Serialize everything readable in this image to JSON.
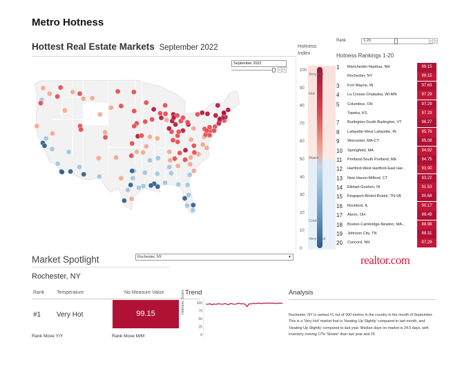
{
  "header": {
    "page_title": "Metro Hotness",
    "main_title": "Hottest Real Estate Markets",
    "main_subtitle": "September 2022",
    "month_value": "September 2022"
  },
  "scale": {
    "title": "Hotness Index",
    "ticks": [
      "100",
      "90",
      "80",
      "70",
      "60",
      "50",
      "40",
      "30",
      "20",
      "10",
      "0"
    ],
    "words": [
      "Very Hot",
      "Hot",
      "Warm",
      "Cool",
      "Very Cool"
    ]
  },
  "rankings": {
    "filter_label": "Rank",
    "filter_value": "1-20",
    "title": "Hotness Rankings 1-20",
    "rows": [
      {
        "rank": "1",
        "name": "Manchester-Nashua, NH",
        "value": "99.15"
      },
      {
        "rank": "",
        "name": "Rochester, NY",
        "value": "99.15"
      },
      {
        "rank": "3",
        "name": "Fort Wayne, IN",
        "value": "97.63"
      },
      {
        "rank": "4",
        "name": "La Crosse-Onalaska, WI-MN",
        "value": "97.29"
      },
      {
        "rank": "5",
        "name": "Columbus, OH",
        "value": "97.29"
      },
      {
        "rank": "",
        "name": "Topeka, KS",
        "value": "97.29"
      },
      {
        "rank": "7",
        "name": "Burlington-South Burlington, VT",
        "value": "96.27"
      },
      {
        "rank": "8",
        "name": "Lafayette-West Lafayette, IN",
        "value": "95.76"
      },
      {
        "rank": "9",
        "name": "Worcester, MA-CT",
        "value": "95.08"
      },
      {
        "rank": "10",
        "name": "Springfield, MA",
        "value": "94.92"
      },
      {
        "rank": "11",
        "name": "Portland-South Portland, ME",
        "value": "94.75"
      },
      {
        "rank": "12",
        "name": "Hartford-West Hartford-East Har..",
        "value": "93.90"
      },
      {
        "rank": "13",
        "name": "New Haven-Milford, CT",
        "value": "93.22"
      },
      {
        "rank": "14",
        "name": "Elkhart-Goshen, IN",
        "value": "91.53"
      },
      {
        "rank": "15",
        "name": "Kingsport-Bristol-Bristol, TN-VA",
        "value": "90.68"
      },
      {
        "rank": "16",
        "name": "Rockford, IL",
        "value": "90.17"
      },
      {
        "rank": "17",
        "name": "Akron, OH",
        "value": "89.49"
      },
      {
        "rank": "18",
        "name": "Boston-Cambridge-Newton, MA-..",
        "value": "88.98"
      },
      {
        "rank": "19",
        "name": "Johnson City, TN",
        "value": "88.31"
      },
      {
        "rank": "20",
        "name": "Concord, NH",
        "value": "87.29"
      }
    ]
  },
  "spotlight": {
    "title": "Market Spotlight",
    "selected": "Rochester, NY",
    "city": "Rochester, NY",
    "rank_header": "Rank",
    "temp_header": "Temperature",
    "measure_header": "No Measure Value",
    "rank_value": "#1",
    "temp_value": "Very Hot",
    "measure_value": "99.15",
    "rank_move_yy": "Rank Move Y/Y",
    "rank_move_mm": "Rank Move M/M"
  },
  "logo": {
    "text": "realtor.com"
  },
  "trend": {
    "title": "Trend",
    "ylabel": "Hotness Score",
    "ticks": [
      "100",
      "75",
      "50",
      "25",
      "0"
    ],
    "line_color": "#b01236",
    "points": [
      96,
      95,
      97,
      94,
      96,
      95,
      97,
      96,
      95,
      97,
      96,
      94,
      98,
      96,
      95,
      97,
      99,
      96,
      97,
      95,
      88,
      97,
      96,
      98,
      97,
      99,
      98,
      97,
      99,
      98,
      99,
      99,
      98,
      99,
      97,
      99,
      98,
      99
    ]
  },
  "analysis": {
    "title": "Analysis",
    "text": "Rochester, NY is ranked #1 out of 300 metros in the country in the month of September. This is a 'Very Hot' market that is 'Heating Up Slightly' compared to last month, and 'Heating Up Slightly' compared to last year. Median days on market is 24.5 days, with inventory moving 17% 'Slower' than last year and 25"
  },
  "colors": {
    "very_hot": "#b01236",
    "hot": "#e8454a",
    "warm": "#f4a58a",
    "cool": "#9ec4de",
    "very_cool": "#2a5c8c",
    "land": "#f2f2f2",
    "border": "#dcdcdc"
  },
  "map_markers": [
    {
      "lon": -122.3,
      "lat": 47.6,
      "t": 2
    },
    {
      "lon": -122.7,
      "lat": 45.5,
      "t": 1
    },
    {
      "lon": -117.4,
      "lat": 47.7,
      "t": 3
    },
    {
      "lon": -116.2,
      "lat": 43.6,
      "t": 2
    },
    {
      "lon": -123.0,
      "lat": 44.9,
      "t": 3
    },
    {
      "lon": -124.1,
      "lat": 40.8,
      "t": 2
    },
    {
      "lon": -121.5,
      "lat": 38.6,
      "t": 1
    },
    {
      "lon": -122.4,
      "lat": 37.8,
      "t": 0
    },
    {
      "lon": -121.9,
      "lat": 37.3,
      "t": 0
    },
    {
      "lon": -119.8,
      "lat": 36.7,
      "t": 1
    },
    {
      "lon": -118.2,
      "lat": 34.1,
      "t": 1
    },
    {
      "lon": -117.2,
      "lat": 32.7,
      "t": 0
    },
    {
      "lon": -119.7,
      "lat": 39.5,
      "t": 2
    },
    {
      "lon": -115.1,
      "lat": 36.2,
      "t": 1
    },
    {
      "lon": -112.1,
      "lat": 33.5,
      "t": 1
    },
    {
      "lon": -110.9,
      "lat": 32.2,
      "t": 0
    },
    {
      "lon": -111.9,
      "lat": 40.8,
      "t": 3
    },
    {
      "lon": -111.7,
      "lat": 40.2,
      "t": 3
    },
    {
      "lon": -104.9,
      "lat": 39.7,
      "t": 2
    },
    {
      "lon": -104.8,
      "lat": 38.8,
      "t": 3
    },
    {
      "lon": -106.7,
      "lat": 35.1,
      "t": 2
    },
    {
      "lon": -106.5,
      "lat": 31.8,
      "t": 1
    },
    {
      "lon": -108.5,
      "lat": 45.8,
      "t": 2
    },
    {
      "lon": -96.8,
      "lat": 32.8,
      "t": 1
    },
    {
      "lon": -97.3,
      "lat": 32.8,
      "t": 0
    },
    {
      "lon": -97.7,
      "lat": 30.3,
      "t": 0
    },
    {
      "lon": -98.5,
      "lat": 29.4,
      "t": 1
    },
    {
      "lon": -95.4,
      "lat": 29.8,
      "t": 1
    },
    {
      "lon": -97.4,
      "lat": 27.8,
      "t": 2
    },
    {
      "lon": -101.8,
      "lat": 35.2,
      "t": 2
    },
    {
      "lon": -97.5,
      "lat": 35.5,
      "t": 3
    },
    {
      "lon": -96.0,
      "lat": 36.2,
      "t": 2
    },
    {
      "lon": -95.7,
      "lat": 39.0,
      "t": 4
    },
    {
      "lon": -97.3,
      "lat": 37.7,
      "t": 3
    },
    {
      "lon": -94.6,
      "lat": 39.1,
      "t": 3
    },
    {
      "lon": -96.0,
      "lat": 41.3,
      "t": 3
    },
    {
      "lon": -96.7,
      "lat": 40.8,
      "t": 3
    },
    {
      "lon": -93.3,
      "lat": 45.0,
      "t": 3
    },
    {
      "lon": -91.2,
      "lat": 43.8,
      "t": 4
    },
    {
      "lon": -93.6,
      "lat": 41.6,
      "t": 3
    },
    {
      "lon": -91.7,
      "lat": 42.0,
      "t": 3
    },
    {
      "lon": -90.2,
      "lat": 38.6,
      "t": 2
    },
    {
      "lon": -92.3,
      "lat": 38.9,
      "t": 2
    },
    {
      "lon": -93.3,
      "lat": 37.2,
      "t": 2
    },
    {
      "lon": -94.2,
      "lat": 36.1,
      "t": 2
    },
    {
      "lon": -92.3,
      "lat": 34.7,
      "t": 1
    },
    {
      "lon": -90.1,
      "lat": 30.0,
      "t": 0
    },
    {
      "lon": -91.1,
      "lat": 30.5,
      "t": 0
    },
    {
      "lon": -93.7,
      "lat": 32.5,
      "t": 1
    },
    {
      "lon": -90.2,
      "lat": 32.3,
      "t": 1
    },
    {
      "lon": -88.0,
      "lat": 30.7,
      "t": 1
    },
    {
      "lon": -86.8,
      "lat": 33.5,
      "t": 1
    },
    {
      "lon": -86.3,
      "lat": 32.4,
      "t": 1
    },
    {
      "lon": -86.6,
      "lat": 34.7,
      "t": 2
    },
    {
      "lon": -84.4,
      "lat": 33.7,
      "t": 2
    },
    {
      "lon": -81.1,
      "lat": 32.1,
      "t": 1
    },
    {
      "lon": -82.5,
      "lat": 27.9,
      "t": 0
    },
    {
      "lon": -81.4,
      "lat": 28.5,
      "t": 1
    },
    {
      "lon": -80.2,
      "lat": 25.8,
      "t": 1
    },
    {
      "lon": -81.7,
      "lat": 30.3,
      "t": 1
    },
    {
      "lon": -80.1,
      "lat": 26.7,
      "t": 0
    },
    {
      "lon": -81.8,
      "lat": 26.6,
      "t": 1
    },
    {
      "lon": -84.3,
      "lat": 30.4,
      "t": 1
    },
    {
      "lon": -80.8,
      "lat": 35.2,
      "t": 2
    },
    {
      "lon": -78.6,
      "lat": 35.8,
      "t": 2
    },
    {
      "lon": -79.8,
      "lat": 36.1,
      "t": 3
    },
    {
      "lon": -81.0,
      "lat": 34.0,
      "t": 2
    },
    {
      "lon": -79.9,
      "lat": 32.8,
      "t": 2
    },
    {
      "lon": -82.4,
      "lat": 34.8,
      "t": 3
    },
    {
      "lon": -86.8,
      "lat": 36.2,
      "t": 2
    },
    {
      "lon": -85.3,
      "lat": 35.0,
      "t": 3
    },
    {
      "lon": -83.9,
      "lat": 36.0,
      "t": 3
    },
    {
      "lon": -82.3,
      "lat": 36.5,
      "t": 4
    },
    {
      "lon": -90.0,
      "lat": 35.1,
      "t": 1
    },
    {
      "lon": -85.8,
      "lat": 38.3,
      "t": 3
    },
    {
      "lon": -84.5,
      "lat": 38.0,
      "t": 3
    },
    {
      "lon": -84.5,
      "lat": 39.1,
      "t": 3
    },
    {
      "lon": -83.0,
      "lat": 40.0,
      "t": 4
    },
    {
      "lon": -81.5,
      "lat": 41.1,
      "t": 4
    },
    {
      "lon": -81.7,
      "lat": 41.5,
      "t": 3
    },
    {
      "lon": -83.6,
      "lat": 41.7,
      "t": 3
    },
    {
      "lon": -84.2,
      "lat": 39.8,
      "t": 3
    },
    {
      "lon": -86.2,
      "lat": 39.8,
      "t": 3
    },
    {
      "lon": -85.1,
      "lat": 41.1,
      "t": 4
    },
    {
      "lon": -86.9,
      "lat": 40.4,
      "t": 4
    },
    {
      "lon": -86.0,
      "lat": 41.7,
      "t": 4
    },
    {
      "lon": -87.6,
      "lat": 41.9,
      "t": 2
    },
    {
      "lon": -89.1,
      "lat": 42.3,
      "t": 4
    },
    {
      "lon": -89.4,
      "lat": 43.1,
      "t": 3
    },
    {
      "lon": -87.9,
      "lat": 43.0,
      "t": 3
    },
    {
      "lon": -88.0,
      "lat": 44.5,
      "t": 3
    },
    {
      "lon": -83.0,
      "lat": 42.3,
      "t": 3
    },
    {
      "lon": -85.7,
      "lat": 42.9,
      "t": 4
    },
    {
      "lon": -84.6,
      "lat": 42.7,
      "t": 3
    },
    {
      "lon": -85.6,
      "lat": 42.3,
      "t": 4
    },
    {
      "lon": -80.0,
      "lat": 40.4,
      "t": 2
    },
    {
      "lon": -77.0,
      "lat": 38.9,
      "t": 2
    },
    {
      "lon": -76.6,
      "lat": 39.3,
      "t": 3
    },
    {
      "lon": -77.4,
      "lat": 37.5,
      "t": 2
    },
    {
      "lon": -76.3,
      "lat": 36.9,
      "t": 2
    },
    {
      "lon": -75.2,
      "lat": 40.0,
      "t": 3
    },
    {
      "lon": -76.9,
      "lat": 40.3,
      "t": 3
    },
    {
      "lon": -75.5,
      "lat": 40.6,
      "t": 3
    },
    {
      "lon": -76.3,
      "lat": 40.0,
      "t": 3
    },
    {
      "lon": -74.0,
      "lat": 40.7,
      "t": 3
    },
    {
      "lon": -77.6,
      "lat": 43.2,
      "t": 4
    },
    {
      "lon": -78.9,
      "lat": 42.9,
      "t": 3
    },
    {
      "lon": -76.1,
      "lat": 43.0,
      "t": 4
    },
    {
      "lon": -73.8,
      "lat": 42.7,
      "t": 4
    },
    {
      "lon": -72.9,
      "lat": 41.3,
      "t": 4
    },
    {
      "lon": -72.7,
      "lat": 41.8,
      "t": 4
    },
    {
      "lon": -71.4,
      "lat": 41.8,
      "t": 3
    },
    {
      "lon": -71.1,
      "lat": 42.4,
      "t": 4
    },
    {
      "lon": -71.8,
      "lat": 42.3,
      "t": 4
    },
    {
      "lon": -72.6,
      "lat": 42.1,
      "t": 4
    },
    {
      "lon": -71.5,
      "lat": 43.0,
      "t": 4
    },
    {
      "lon": -71.5,
      "lat": 43.2,
      "t": 4
    },
    {
      "lon": -73.2,
      "lat": 44.5,
      "t": 4
    },
    {
      "lon": -70.3,
      "lat": 43.7,
      "t": 4
    },
    {
      "lon": -74.2,
      "lat": 40.0,
      "t": 3
    },
    {
      "lon": -75.5,
      "lat": 39.2,
      "t": 3
    },
    {
      "lon": -79.9,
      "lat": 37.3,
      "t": 3
    },
    {
      "lon": -80.7,
      "lat": 38.4,
      "t": 2
    },
    {
      "lon": -101.3,
      "lat": 47.0,
      "t": 3
    },
    {
      "lon": -96.8,
      "lat": 46.9,
      "t": 3
    },
    {
      "lon": -96.7,
      "lat": 43.5,
      "t": 3
    },
    {
      "lon": -103.2,
      "lat": 44.1,
      "t": 2
    },
    {
      "lon": -100.4,
      "lat": 44.4,
      "t": 3
    },
    {
      "lon": -106.3,
      "lat": 42.9,
      "t": 2
    },
    {
      "lon": -112.0,
      "lat": 46.6,
      "t": 3
    },
    {
      "lon": -114.0,
      "lat": 46.9,
      "t": 2
    },
    {
      "lon": -111.0,
      "lat": 45.7,
      "t": 2
    },
    {
      "lon": -120.5,
      "lat": 46.6,
      "t": 2
    },
    {
      "lon": -118.3,
      "lat": 46.1,
      "t": 3
    },
    {
      "lon": -117.0,
      "lat": 32.6,
      "t": 0
    },
    {
      "lon": -114.6,
      "lat": 32.7,
      "t": 0
    },
    {
      "lon": -99.5,
      "lat": 27.5,
      "t": 0
    },
    {
      "lon": -94.1,
      "lat": 30.1,
      "t": 1
    },
    {
      "lon": -92.0,
      "lat": 30.2,
      "t": 0
    },
    {
      "lon": -97.1,
      "lat": 31.5,
      "t": 1
    },
    {
      "lon": -100.4,
      "lat": 31.5,
      "t": 2
    }
  ]
}
